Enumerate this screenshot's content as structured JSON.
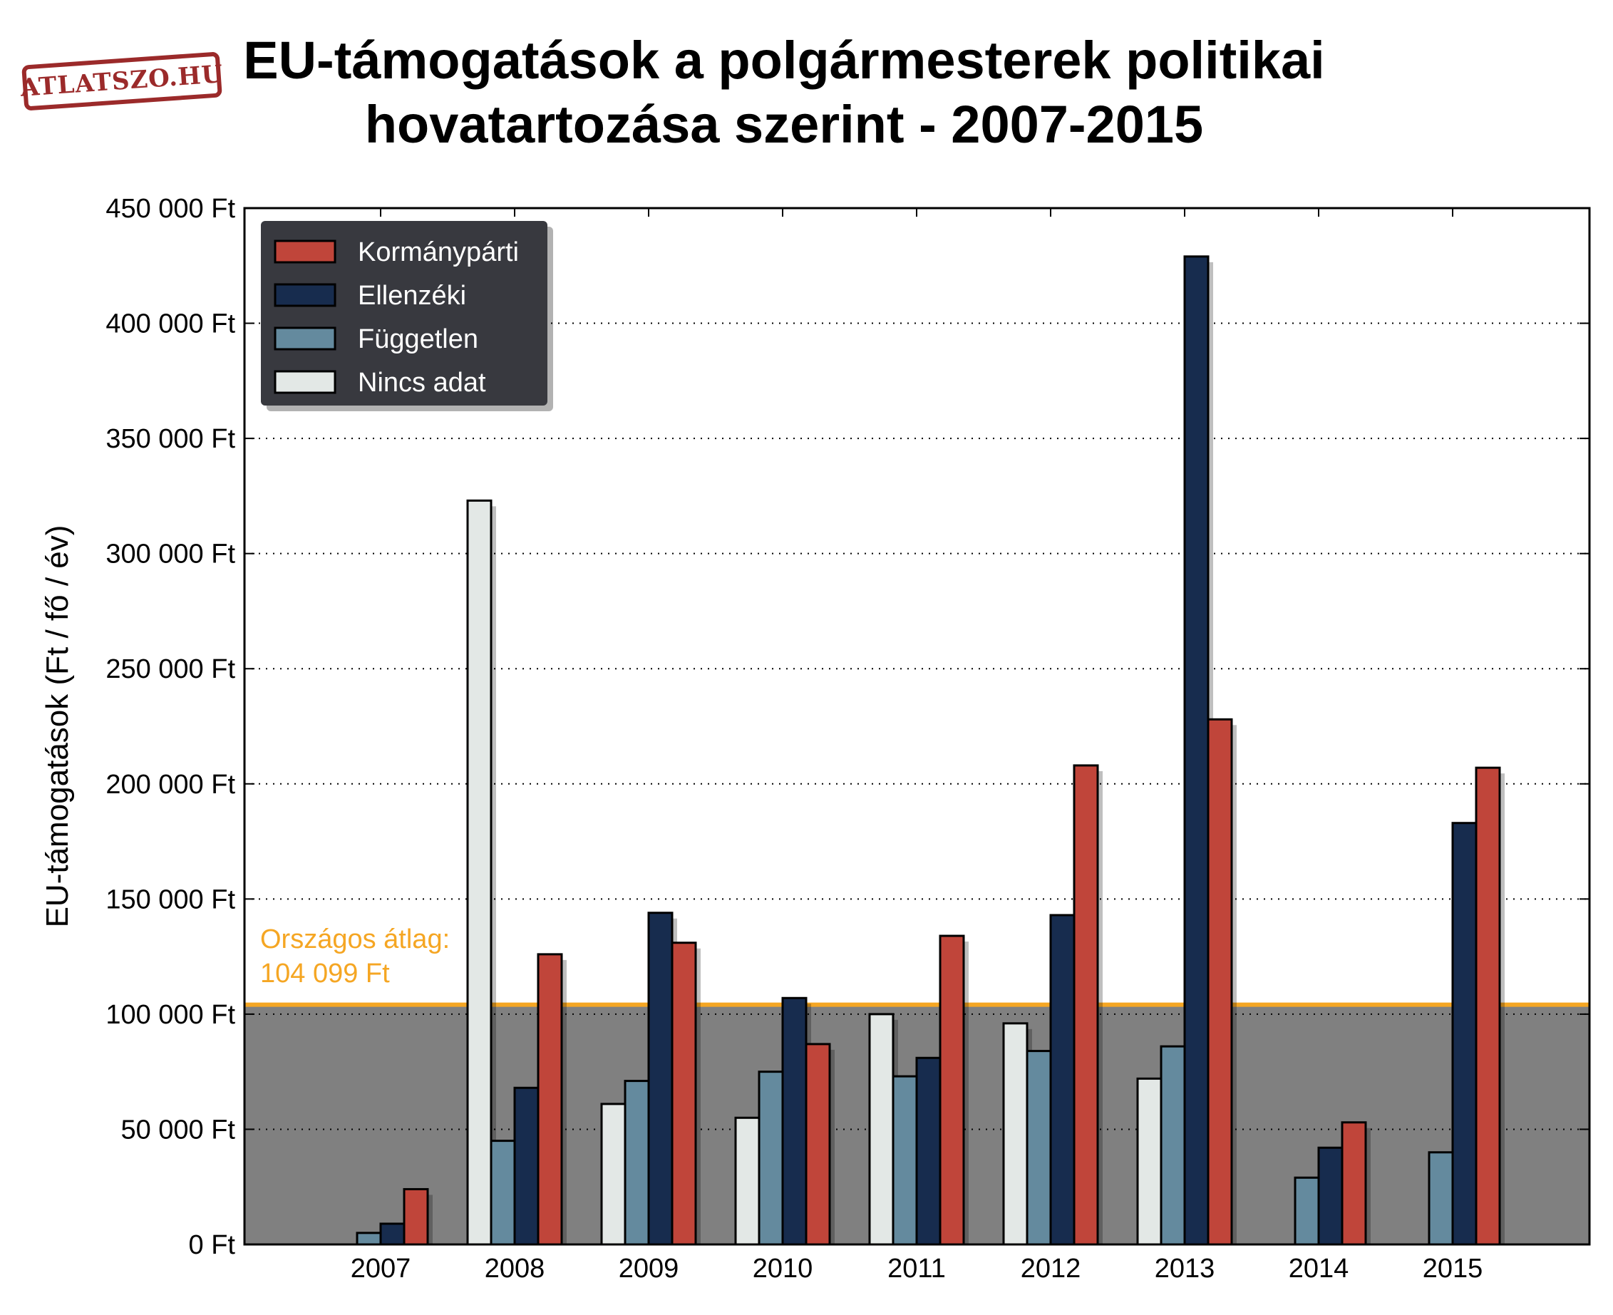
{
  "title_line1": "EU-támogatások a polgármesterek politikai",
  "title_line2": "hovatartozása szerint - 2007-2015",
  "logo_text": "ATLATSZO.HU",
  "chart_data": {
    "type": "bar",
    "title": "EU-támogatások a polgármesterek politikai hovatartozása szerint - 2007-2015",
    "ylabel": "EU-támogatások (Ft / fő / év)",
    "xlabel": "",
    "ylim": [
      0,
      450000
    ],
    "yticks": [
      0,
      50000,
      100000,
      150000,
      200000,
      250000,
      300000,
      350000,
      400000,
      450000
    ],
    "ytick_labels": [
      "0 Ft",
      "50 000 Ft",
      "100 000 Ft",
      "150 000 Ft",
      "200 000 Ft",
      "250 000 Ft",
      "300 000 Ft",
      "350 000 Ft",
      "400 000 Ft",
      "450 000 Ft"
    ],
    "categories": [
      "2007",
      "2008",
      "2009",
      "2010",
      "2011",
      "2012",
      "2013",
      "2014",
      "2015"
    ],
    "grid": "horizontal dotted",
    "legend_position": "top-left",
    "series": [
      {
        "name": "Nincs adat",
        "color": "#e3e8e6",
        "values": [
          0,
          323000,
          61000,
          55000,
          100000,
          96000,
          72000,
          0,
          0
        ]
      },
      {
        "name": "Független",
        "color": "#648a9e",
        "values": [
          5000,
          45000,
          71000,
          75000,
          73000,
          84000,
          86000,
          29000,
          40000
        ]
      },
      {
        "name": "Ellenzéki",
        "color": "#172c4e",
        "values": [
          9000,
          68000,
          144000,
          107000,
          81000,
          143000,
          429000,
          42000,
          183000
        ]
      },
      {
        "name": "Kormánypárti",
        "color": "#c0453a",
        "values": [
          24000,
          126000,
          131000,
          87000,
          134000,
          208000,
          228000,
          53000,
          207000
        ]
      }
    ],
    "legend_order": [
      "Kormánypárti",
      "Ellenzéki",
      "Független",
      "Nincs adat"
    ],
    "average": {
      "value": 104099,
      "label_line1": "Országos átlag:",
      "label_line2": "104 099 Ft",
      "color": "#f5a623",
      "shade_color": "#808080"
    }
  }
}
